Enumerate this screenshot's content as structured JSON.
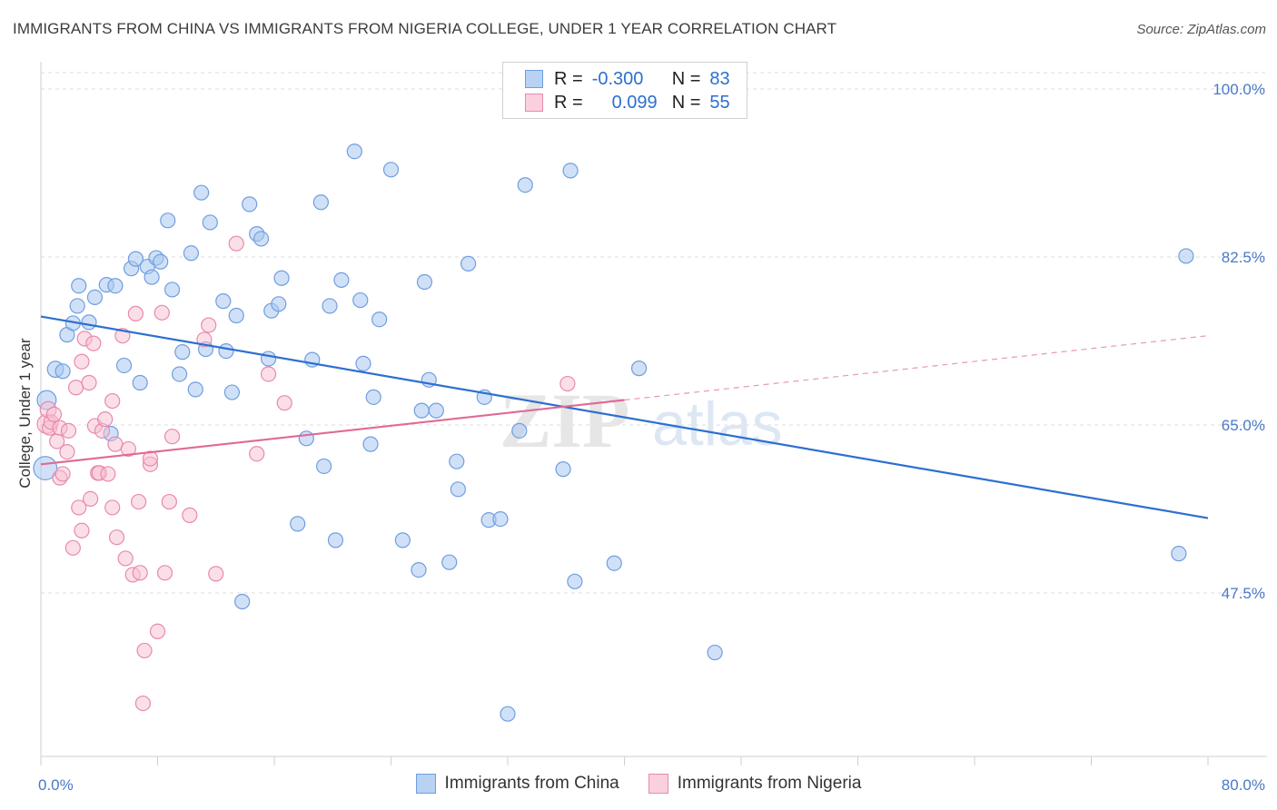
{
  "header": {
    "title": "IMMIGRANTS FROM CHINA VS IMMIGRANTS FROM NIGERIA COLLEGE, UNDER 1 YEAR CORRELATION CHART",
    "source": "Source: ZipAtlas.com"
  },
  "legend": {
    "china": {
      "r_label": "R =",
      "r_value": "-0.300",
      "n_label": "N =",
      "n_value": "83"
    },
    "nigeria": {
      "r_label": "R =",
      "r_value": "0.099",
      "n_label": "N =",
      "n_value": "55"
    }
  },
  "watermark": {
    "zip": "ZIP",
    "atlas": "atlas"
  },
  "colors": {
    "china_fill": "#a9c8f0",
    "china_stroke": "#6f9ee0",
    "china_line": "#2d6fd0",
    "nigeria_fill": "#f7bfd2",
    "nigeria_stroke": "#e88aab",
    "nigeria_line": "#e06a95",
    "tick_text": "#4a78c8",
    "grid": "#dedede"
  },
  "chart_data": {
    "type": "scatter",
    "title": "IMMIGRANTS FROM CHINA VS IMMIGRANTS FROM NIGERIA COLLEGE, UNDER 1 YEAR CORRELATION CHART",
    "xlabel": "",
    "ylabel": "College, Under 1 year",
    "xlim": [
      0,
      80
    ],
    "ylim": [
      31,
      102
    ],
    "x_tick_labels": [
      "0.0%",
      "80.0%"
    ],
    "y_ticks": [
      47.5,
      65.0,
      82.5,
      100.0
    ],
    "y_tick_labels": [
      "47.5%",
      "65.0%",
      "82.5%",
      "100.0%"
    ],
    "grid": true,
    "legend_position": "top-center",
    "series": [
      {
        "name": "Immigrants from China",
        "color": "#a9c8f0",
        "trend": {
          "x": [
            0,
            80
          ],
          "y": [
            76.3,
            55.3
          ]
        },
        "points": [
          [
            0.3,
            60.5,
            1.6
          ],
          [
            0.4,
            67.6,
            1.3
          ],
          [
            1.0,
            70.8,
            1.1
          ],
          [
            1.5,
            70.6,
            1.0
          ],
          [
            1.8,
            74.4,
            1.0
          ],
          [
            2.2,
            75.6,
            1.0
          ],
          [
            2.5,
            77.4,
            1.0
          ],
          [
            2.6,
            79.5,
            1.0
          ],
          [
            3.3,
            75.7,
            1.0
          ],
          [
            3.7,
            78.3,
            1.0
          ],
          [
            4.5,
            79.6,
            1.0
          ],
          [
            5.1,
            79.5,
            1.0
          ],
          [
            4.8,
            64.1,
            1.0
          ],
          [
            5.7,
            71.2,
            1.0
          ],
          [
            6.2,
            81.3,
            1.0
          ],
          [
            6.5,
            82.3,
            1.0
          ],
          [
            6.8,
            69.4,
            1.0
          ],
          [
            7.3,
            81.5,
            1.0
          ],
          [
            7.6,
            80.4,
            1.0
          ],
          [
            7.9,
            82.4,
            1.0
          ],
          [
            8.2,
            82.0,
            1.0
          ],
          [
            8.7,
            86.3,
            1.0
          ],
          [
            9.0,
            79.1,
            1.0
          ],
          [
            9.5,
            70.3,
            1.0
          ],
          [
            9.7,
            72.6,
            1.0
          ],
          [
            10.3,
            82.9,
            1.0
          ],
          [
            10.6,
            68.7,
            1.0
          ],
          [
            11.0,
            89.2,
            1.0
          ],
          [
            11.3,
            72.9,
            1.0
          ],
          [
            11.6,
            86.1,
            1.0
          ],
          [
            12.5,
            77.9,
            1.0
          ],
          [
            12.7,
            72.7,
            1.0
          ],
          [
            13.1,
            68.4,
            1.0
          ],
          [
            13.4,
            76.4,
            1.0
          ],
          [
            13.8,
            46.6,
            1.0
          ],
          [
            14.3,
            88.0,
            1.0
          ],
          [
            14.8,
            84.9,
            1.0
          ],
          [
            15.1,
            84.4,
            1.0
          ],
          [
            15.6,
            71.9,
            1.0
          ],
          [
            15.8,
            76.9,
            1.0
          ],
          [
            16.3,
            77.6,
            1.0
          ],
          [
            16.5,
            80.3,
            1.0
          ],
          [
            17.6,
            54.7,
            1.0
          ],
          [
            18.2,
            63.6,
            1.0
          ],
          [
            18.6,
            71.8,
            1.0
          ],
          [
            19.2,
            88.2,
            1.0
          ],
          [
            19.4,
            60.7,
            1.0
          ],
          [
            19.8,
            77.4,
            1.0
          ],
          [
            20.2,
            53.0,
            1.0
          ],
          [
            20.6,
            80.1,
            1.0
          ],
          [
            21.5,
            93.5,
            1.0
          ],
          [
            21.9,
            78.0,
            1.0
          ],
          [
            22.1,
            71.4,
            1.0
          ],
          [
            22.6,
            63.0,
            1.0
          ],
          [
            22.8,
            67.9,
            1.0
          ],
          [
            23.2,
            76.0,
            1.0
          ],
          [
            24.0,
            91.6,
            1.0
          ],
          [
            24.8,
            53.0,
            1.0
          ],
          [
            25.9,
            49.9,
            1.0
          ],
          [
            26.1,
            66.5,
            1.0
          ],
          [
            26.3,
            79.9,
            1.0
          ],
          [
            26.6,
            69.7,
            1.0
          ],
          [
            27.1,
            66.5,
            1.0
          ],
          [
            28.0,
            50.7,
            1.0
          ],
          [
            28.5,
            61.2,
            1.0
          ],
          [
            28.6,
            58.3,
            1.0
          ],
          [
            29.3,
            81.8,
            1.0
          ],
          [
            30.4,
            67.9,
            1.0
          ],
          [
            30.7,
            55.1,
            1.0
          ],
          [
            31.5,
            55.2,
            1.0
          ],
          [
            32.0,
            34.9,
            1.0
          ],
          [
            32.8,
            64.4,
            1.0
          ],
          [
            33.2,
            90.0,
            1.0
          ],
          [
            35.8,
            60.4,
            1.0
          ],
          [
            36.3,
            91.5,
            1.0
          ],
          [
            36.6,
            48.7,
            1.0
          ],
          [
            39.3,
            50.6,
            1.0
          ],
          [
            41.0,
            70.9,
            1.0
          ],
          [
            46.2,
            41.3,
            1.0
          ],
          [
            78.0,
            51.6,
            1.0
          ],
          [
            78.5,
            82.6,
            1.0
          ]
        ]
      },
      {
        "name": "Immigrants from Nigeria",
        "color": "#f7bfd2",
        "trend": {
          "x": [
            40,
            80
          ],
          "y": [
            67.6,
            74.3
          ]
        },
        "points": [
          [
            0.4,
            65.1,
            1.3
          ],
          [
            0.5,
            66.6,
            1.1
          ],
          [
            0.6,
            64.7,
            1.0
          ],
          [
            0.7,
            65.3,
            1.0
          ],
          [
            0.9,
            66.1,
            1.0
          ],
          [
            1.1,
            63.3,
            1.0
          ],
          [
            1.3,
            59.5,
            1.0
          ],
          [
            1.3,
            64.7,
            1.0
          ],
          [
            1.5,
            59.9,
            1.0
          ],
          [
            1.8,
            62.2,
            1.0
          ],
          [
            1.9,
            64.4,
            1.0
          ],
          [
            2.2,
            52.2,
            1.0
          ],
          [
            2.4,
            68.9,
            1.0
          ],
          [
            2.6,
            56.4,
            1.0
          ],
          [
            2.8,
            71.6,
            1.0
          ],
          [
            2.8,
            54.0,
            1.0
          ],
          [
            3.0,
            74.0,
            1.0
          ],
          [
            3.3,
            69.4,
            1.0
          ],
          [
            3.4,
            57.3,
            1.0
          ],
          [
            3.6,
            73.5,
            1.0
          ],
          [
            3.7,
            64.9,
            1.0
          ],
          [
            3.9,
            60.0,
            1.0
          ],
          [
            4.0,
            60.0,
            1.0
          ],
          [
            4.2,
            64.4,
            1.0
          ],
          [
            4.4,
            65.6,
            1.0
          ],
          [
            4.6,
            59.9,
            1.0
          ],
          [
            4.9,
            67.5,
            1.0
          ],
          [
            4.9,
            56.4,
            1.0
          ],
          [
            5.1,
            63.0,
            1.0
          ],
          [
            5.2,
            53.3,
            1.0
          ],
          [
            5.6,
            74.3,
            1.0
          ],
          [
            5.8,
            51.1,
            1.0
          ],
          [
            6.0,
            62.5,
            1.0
          ],
          [
            6.3,
            49.4,
            1.0
          ],
          [
            6.5,
            76.6,
            1.0
          ],
          [
            6.7,
            57.0,
            1.0
          ],
          [
            6.8,
            49.6,
            1.0
          ],
          [
            7.0,
            36.0,
            1.0
          ],
          [
            7.1,
            41.5,
            1.0
          ],
          [
            7.5,
            60.9,
            1.0
          ],
          [
            7.5,
            61.5,
            1.0
          ],
          [
            8.0,
            43.5,
            1.0
          ],
          [
            8.3,
            76.7,
            1.0
          ],
          [
            8.5,
            49.6,
            1.0
          ],
          [
            8.8,
            57.0,
            1.0
          ],
          [
            9.0,
            63.8,
            1.0
          ],
          [
            10.2,
            55.6,
            1.0
          ],
          [
            11.2,
            73.9,
            1.0
          ],
          [
            11.5,
            75.4,
            1.0
          ],
          [
            12.0,
            49.5,
            1.0
          ],
          [
            13.4,
            83.9,
            1.0
          ],
          [
            14.8,
            62.0,
            1.0
          ],
          [
            15.6,
            70.3,
            1.0
          ],
          [
            16.7,
            67.3,
            1.0
          ],
          [
            36.1,
            69.3,
            1.0
          ]
        ]
      }
    ]
  }
}
